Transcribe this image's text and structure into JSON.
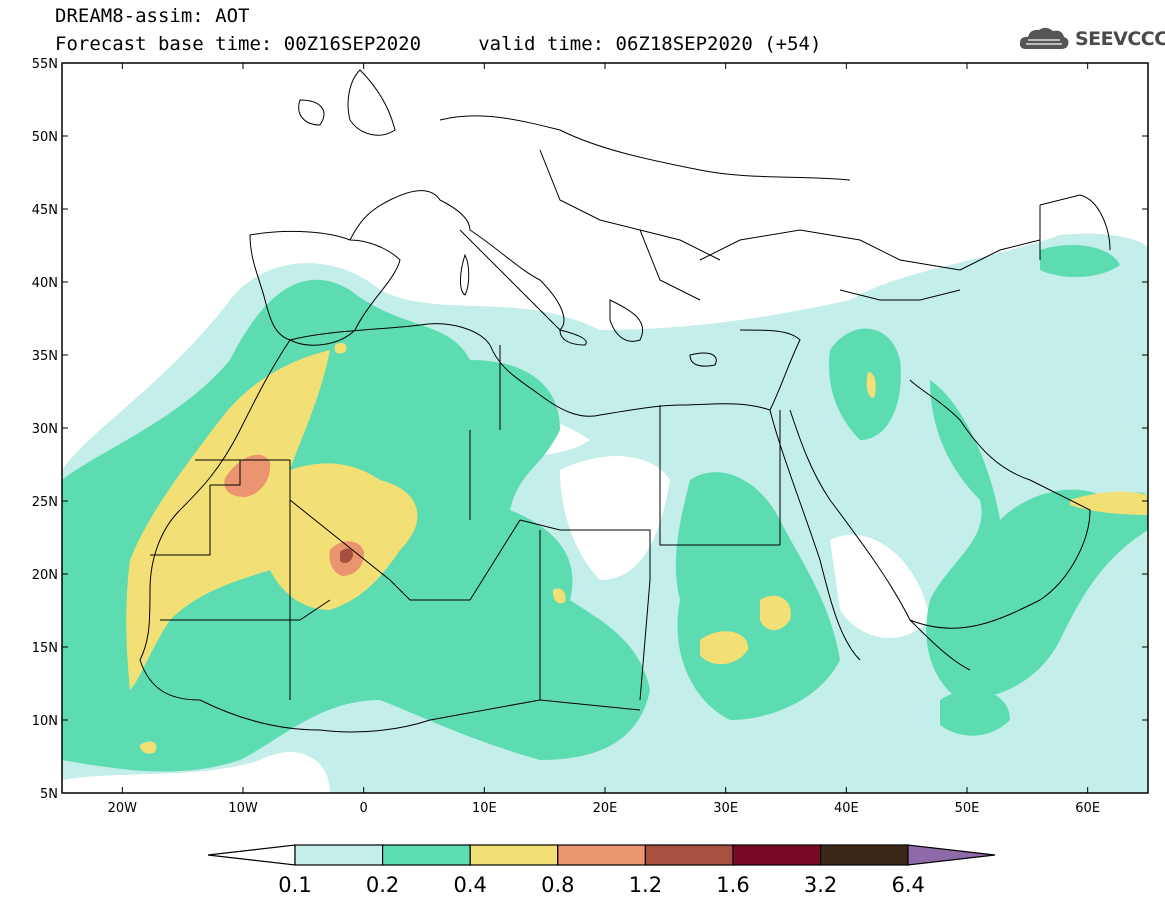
{
  "header": {
    "title_line1": "DREAM8-assim: AOT",
    "title_line2": "Forecast base time: 00Z16SEP2020     valid time: 06Z18SEP2020 (+54)"
  },
  "logo": {
    "text": "SEEVCCC",
    "icon": "cloud-icon"
  },
  "map": {
    "lat_labels": [
      "55N",
      "50N",
      "45N",
      "40N",
      "35N",
      "30N",
      "25N",
      "20N",
      "15N",
      "10N",
      "5N"
    ],
    "lon_labels": [
      "20W",
      "10W",
      "0",
      "10E",
      "20E",
      "30E",
      "40E",
      "50E",
      "60E"
    ],
    "colors": {
      "c1": "#c4eee9",
      "c2": "#5ddcb2",
      "c3": "#f2e076",
      "c4": "#eb9570",
      "c5": "#a8503f",
      "c6": "#780a28",
      "c7": "#3d2818",
      "c8": "#8e6aa8",
      "coast": "#000000"
    }
  },
  "colorbar": {
    "labels": [
      "0.1",
      "0.2",
      "0.4",
      "0.8",
      "1.2",
      "1.6",
      "3.2",
      "6.4"
    ]
  }
}
